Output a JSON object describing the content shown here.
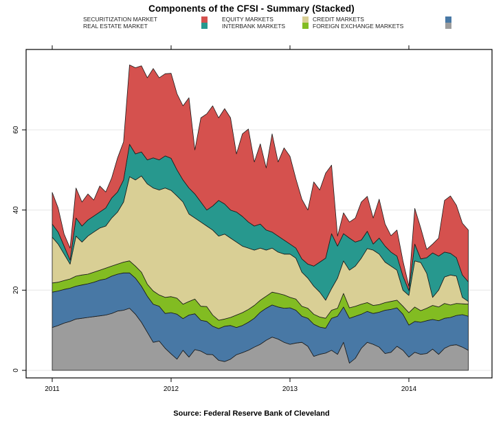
{
  "title": "Components of the CFSI - Summary (Stacked)",
  "source_note": "Source: Federal Reserve Bank of Cleveland",
  "legend": [
    {
      "label": "SECURITIZATION MARKET",
      "color": "#D5514E"
    },
    {
      "label": "REAL ESTATE MARKET",
      "color": "#27988E"
    },
    {
      "label": "EQUITY MARKETS",
      "color": "#D9CF95"
    },
    {
      "label": "INTERBANK MARKETS",
      "color": "#82BC22"
    },
    {
      "label": "CREDIT MARKETS",
      "color": "#4878A5"
    },
    {
      "label": "FOREIGN EXCHANGE MARKETS",
      "color": "#9C9C9C"
    }
  ],
  "chart_data": {
    "type": "area",
    "stacked": true,
    "title": "Components of the CFSI - Summary (Stacked)",
    "xlabel": "",
    "ylabel": "",
    "xticks": [
      2011,
      2012,
      2013,
      2014
    ],
    "yticks": [
      0,
      20,
      40,
      60
    ],
    "xlim": [
      2010.78,
      2014.7
    ],
    "ylim": [
      -2,
      80
    ],
    "grid": "horizontal",
    "grid_color": "#E6E6E6",
    "frame_color": "#000000",
    "outline_color": "#1a1a1a",
    "x": [
      2011.0,
      2011.05,
      2011.1,
      2011.15,
      2011.2,
      2011.25,
      2011.3,
      2011.35,
      2011.4,
      2011.45,
      2011.5,
      2011.55,
      2011.6,
      2011.65,
      2011.7,
      2011.75,
      2011.8,
      2011.85,
      2011.9,
      2011.95,
      2012.0,
      2012.05,
      2012.1,
      2012.15,
      2012.2,
      2012.25,
      2012.3,
      2012.35,
      2012.4,
      2012.45,
      2012.5,
      2012.55,
      2012.6,
      2012.65,
      2012.7,
      2012.75,
      2012.8,
      2012.85,
      2012.9,
      2012.95,
      2013.0,
      2013.05,
      2013.1,
      2013.15,
      2013.2,
      2013.25,
      2013.3,
      2013.35,
      2013.4,
      2013.45,
      2013.5,
      2013.55,
      2013.6,
      2013.65,
      2013.7,
      2013.75,
      2013.8,
      2013.85,
      2013.9,
      2013.95,
      2014.0,
      2014.05,
      2014.1,
      2014.15,
      2014.2,
      2014.25,
      2014.3,
      2014.35,
      2014.4,
      2014.45,
      2014.5
    ],
    "series": [
      {
        "name": "FOREIGN EXCHANGE MARKETS",
        "color": "#9C9C9C",
        "values": [
          10.7,
          11.2,
          11.8,
          12.2,
          12.8,
          13.0,
          13.2,
          13.4,
          13.6,
          13.8,
          14.2,
          14.8,
          15.0,
          15.5,
          14.0,
          12.0,
          9.5,
          7.0,
          7.3,
          5.5,
          4.1,
          2.8,
          5.0,
          3.3,
          5.2,
          4.8,
          4.0,
          3.9,
          2.5,
          2.2,
          2.8,
          3.9,
          4.4,
          5.0,
          5.8,
          6.5,
          7.5,
          8.3,
          7.8,
          7.0,
          6.5,
          6.8,
          7.0,
          6.0,
          3.5,
          4.0,
          4.3,
          5.0,
          4.0,
          7.0,
          1.8,
          3.0,
          5.5,
          7.0,
          6.5,
          5.8,
          4.2,
          4.5,
          6.0,
          5.0,
          3.3,
          4.5,
          4.0,
          4.2,
          5.3,
          4.0,
          5.5,
          6.2,
          6.4,
          5.8,
          5.0
        ]
      },
      {
        "name": "CREDIT MARKETS",
        "color": "#4878A5",
        "values": [
          8.8,
          8.6,
          8.4,
          8.3,
          8.2,
          8.3,
          8.4,
          8.6,
          8.9,
          9.0,
          9.3,
          9.2,
          9.3,
          8.8,
          9.0,
          9.0,
          9.0,
          9.5,
          8.7,
          8.7,
          10.3,
          11.2,
          7.9,
          10.5,
          8.9,
          7.7,
          8.2,
          7.1,
          7.9,
          8.8,
          8.4,
          6.8,
          6.8,
          7.0,
          7.2,
          8.0,
          8.0,
          8.0,
          8.0,
          8.5,
          9.1,
          8.2,
          6.5,
          7.0,
          8.0,
          6.8,
          6.2,
          8.0,
          9.5,
          8.8,
          11.2,
          10.5,
          8.5,
          7.7,
          7.7,
          8.7,
          10.8,
          10.7,
          9.6,
          9.0,
          8.0,
          7.7,
          8.0,
          8.2,
          7.4,
          8.4,
          7.5,
          7.0,
          7.3,
          8.1,
          8.5
        ]
      },
      {
        "name": "INTERBANK MARKETS",
        "color": "#82BC22",
        "values": [
          2.3,
          2.2,
          2.2,
          2.3,
          2.5,
          2.5,
          2.4,
          2.5,
          2.5,
          2.7,
          2.5,
          2.5,
          2.7,
          3.0,
          3.0,
          3.5,
          3.0,
          3.3,
          2.8,
          4.0,
          4.0,
          4.0,
          3.6,
          3.4,
          3.7,
          3.5,
          3.7,
          2.8,
          2.1,
          1.8,
          2.0,
          3.1,
          3.2,
          3.2,
          3.2,
          3.0,
          3.0,
          3.2,
          3.4,
          3.3,
          2.6,
          2.8,
          2.5,
          2.5,
          2.5,
          2.5,
          2.5,
          2.0,
          2.0,
          3.4,
          2.6,
          2.5,
          2.5,
          2.2,
          2.0,
          1.9,
          1.9,
          2.0,
          1.9,
          2.0,
          3.1,
          3.6,
          2.9,
          3.1,
          3.5,
          3.4,
          3.7,
          3.1,
          3.0,
          2.7,
          3.0
        ]
      },
      {
        "name": "EQUITY MARKETS",
        "color": "#D9CF95",
        "values": [
          11.4,
          9.5,
          6.6,
          3.7,
          10.0,
          8.2,
          9.5,
          10.0,
          10.5,
          10.5,
          12.0,
          13.0,
          15.0,
          21.0,
          21.5,
          24.0,
          25.0,
          25.7,
          26.2,
          27.3,
          26.5,
          25.5,
          25.5,
          21.8,
          20.2,
          21.0,
          20.1,
          21.2,
          21.0,
          21.2,
          19.8,
          18.2,
          16.6,
          15.3,
          13.8,
          13.0,
          11.5,
          11.0,
          10.3,
          10.2,
          10.8,
          10.2,
          8.5,
          7.5,
          7.0,
          6.2,
          4.5,
          5.4,
          7.5,
          8.1,
          9.4,
          10.0,
          11.5,
          13.5,
          13.8,
          12.6,
          10.1,
          8.8,
          7.5,
          4.0,
          4.3,
          11.5,
          12.0,
          8.7,
          2.0,
          4.2,
          6.6,
          7.5,
          6.8,
          1.6,
          0.7
        ]
      },
      {
        "name": "REAL ESTATE MARKET",
        "color": "#27988E",
        "values": [
          3.3,
          3.0,
          2.0,
          1.0,
          4.5,
          4.0,
          4.0,
          4.0,
          4.0,
          4.5,
          5.0,
          5.0,
          5.5,
          8.1,
          6.5,
          6.0,
          6.0,
          7.5,
          7.5,
          8.0,
          8.0,
          6.5,
          5.5,
          6.5,
          6.0,
          5.0,
          4.0,
          6.0,
          8.9,
          7.5,
          7.0,
          7.5,
          7.4,
          6.5,
          6.0,
          6.0,
          5.0,
          4.0,
          4.0,
          3.5,
          2.5,
          2.5,
          3.3,
          3.5,
          5.0,
          7.5,
          10.5,
          13.7,
          8.0,
          6.8,
          8.0,
          6.0,
          4.5,
          4.3,
          1.5,
          4.0,
          4.0,
          3.5,
          3.5,
          3.5,
          1.2,
          4.2,
          0.9,
          3.9,
          11.1,
          8.5,
          6.2,
          5.4,
          4.6,
          5.6,
          4.9
        ]
      },
      {
        "name": "SECURITIZATION MARKET",
        "color": "#D5514E",
        "values": [
          7.9,
          6.0,
          3.0,
          3.0,
          7.5,
          6.0,
          6.5,
          4.0,
          6.5,
          4.0,
          5.0,
          8.5,
          9.5,
          19.8,
          21.5,
          21.5,
          20.5,
          22.3,
          20.5,
          20.5,
          21.2,
          19.0,
          18.5,
          22.5,
          11.0,
          21.0,
          24.0,
          25.0,
          20.6,
          23.8,
          23.0,
          14.5,
          20.6,
          23.2,
          16.0,
          20.0,
          15.5,
          24.5,
          18.5,
          23.0,
          21.9,
          17.3,
          14.9,
          13.5,
          21.0,
          18.0,
          21.2,
          17.1,
          2.5,
          5.2,
          4.0,
          6.0,
          9.5,
          8.7,
          6.5,
          9.7,
          5.5,
          4.1,
          6.5,
          3.8,
          1.1,
          8.9,
          7.7,
          2.1,
          2.2,
          4.5,
          12.9,
          14.3,
          13.1,
          12.9,
          12.9
        ]
      }
    ]
  }
}
